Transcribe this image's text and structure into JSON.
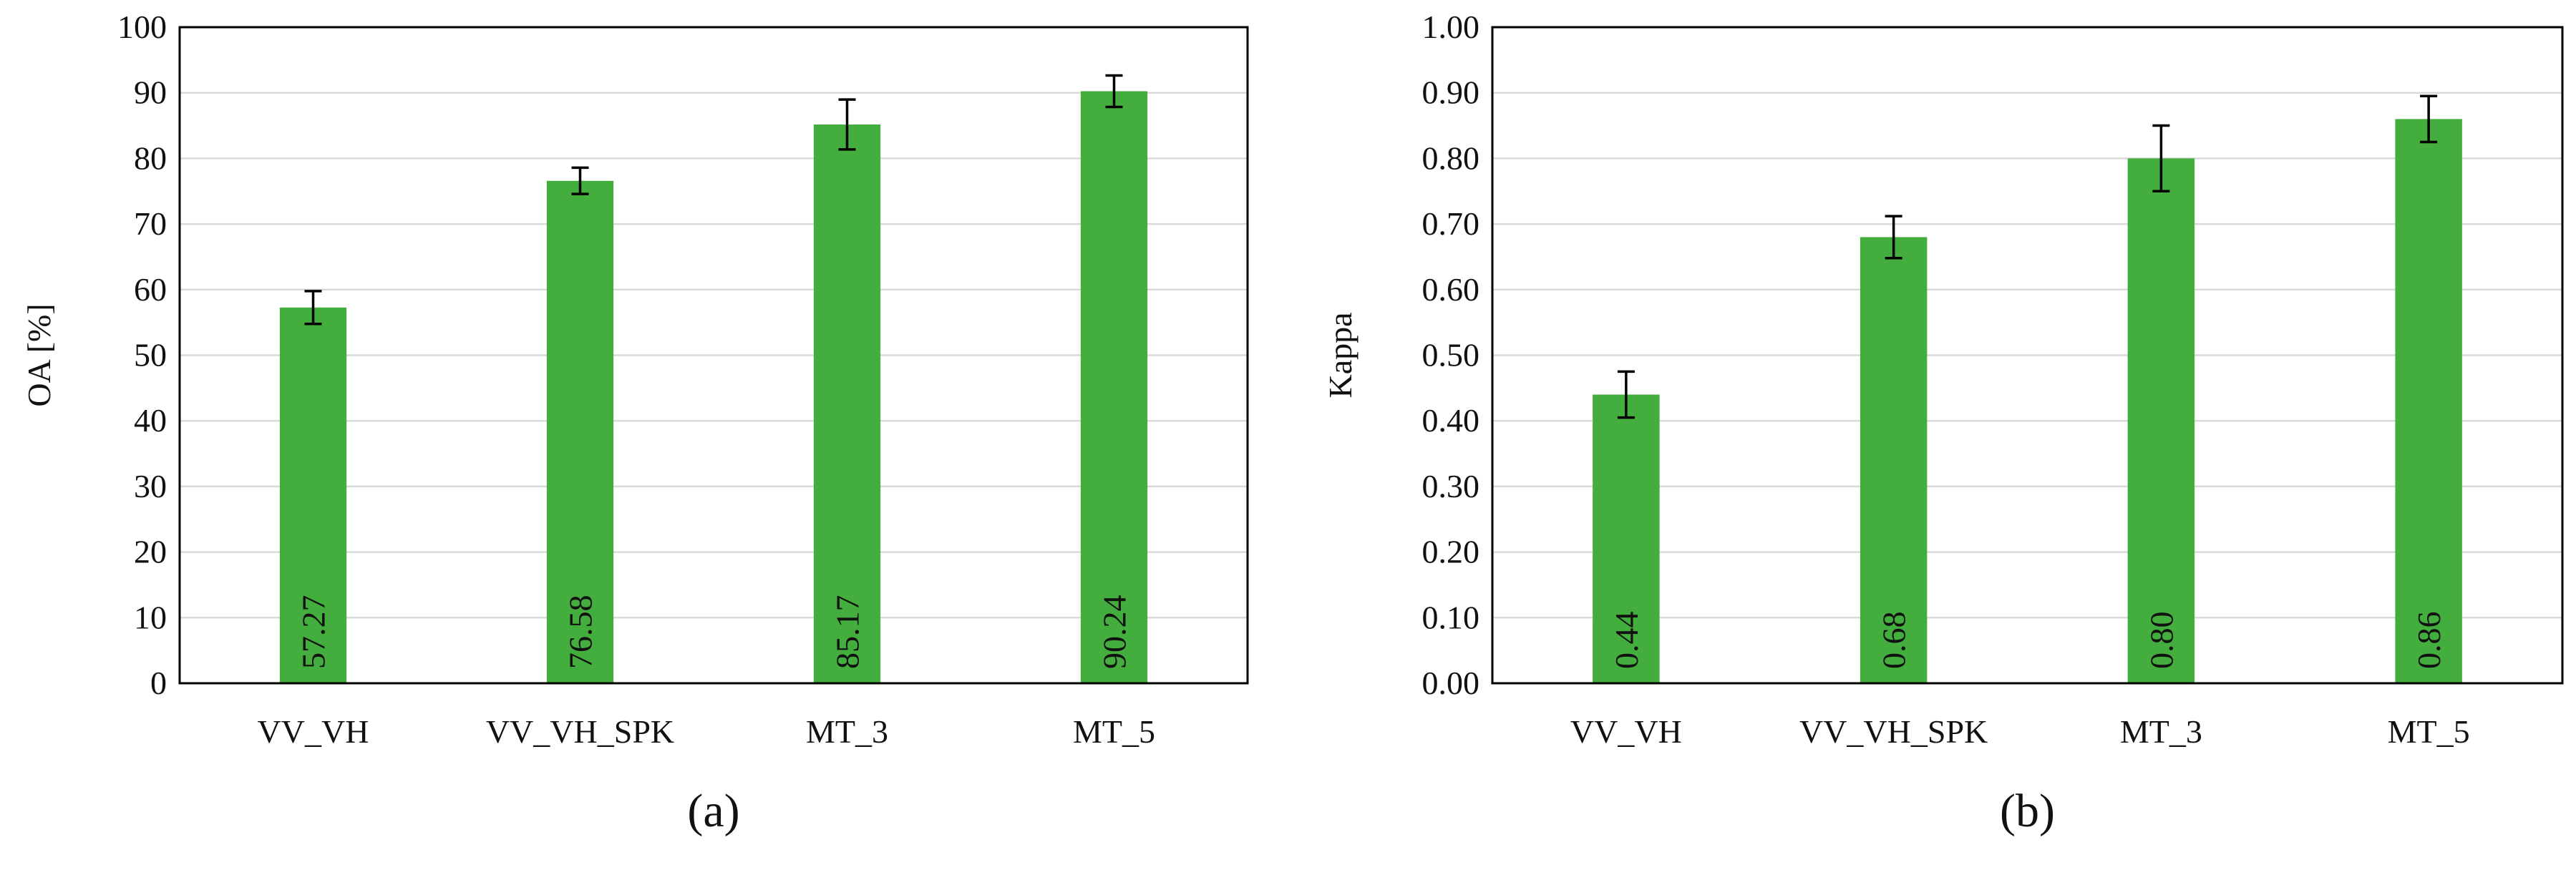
{
  "chart_data": [
    {
      "type": "bar",
      "panel": "(a)",
      "categories": [
        "VV_VH",
        "VV_VH_SPK",
        "MT_3",
        "MT_5"
      ],
      "values": [
        57.27,
        76.58,
        85.17,
        90.24
      ],
      "value_labels": [
        "57.27",
        "76.58",
        "85.17",
        "90.24"
      ],
      "error": [
        2.5,
        2.0,
        3.8,
        2.4
      ],
      "ylabel": "OA [%]",
      "xlabel": "",
      "ylim": [
        0,
        100
      ],
      "yticks": [
        0,
        10,
        20,
        30,
        40,
        50,
        60,
        70,
        80,
        90,
        100
      ],
      "ytick_labels": [
        "0",
        "10",
        "20",
        "30",
        "40",
        "50",
        "60",
        "70",
        "80",
        "90",
        "100"
      ],
      "grid": true,
      "bar_color": "#43ad3d"
    },
    {
      "type": "bar",
      "panel": "(b)",
      "categories": [
        "VV_VH",
        "VV_VH_SPK",
        "MT_3",
        "MT_5"
      ],
      "values": [
        0.44,
        0.68,
        0.8,
        0.86
      ],
      "value_labels": [
        "0.44",
        "0.68",
        "0.80",
        "0.86"
      ],
      "error": [
        0.035,
        0.032,
        0.05,
        0.035
      ],
      "ylabel": "Kappa",
      "xlabel": "",
      "ylim": [
        0,
        1
      ],
      "yticks": [
        0,
        0.1,
        0.2,
        0.3,
        0.4,
        0.5,
        0.6,
        0.7,
        0.8,
        0.9,
        1.0
      ],
      "ytick_labels": [
        "0.00",
        "0.10",
        "0.20",
        "0.30",
        "0.40",
        "0.50",
        "0.60",
        "0.70",
        "0.80",
        "0.90",
        "1.00"
      ],
      "grid": true,
      "bar_color": "#43ad3d"
    }
  ]
}
